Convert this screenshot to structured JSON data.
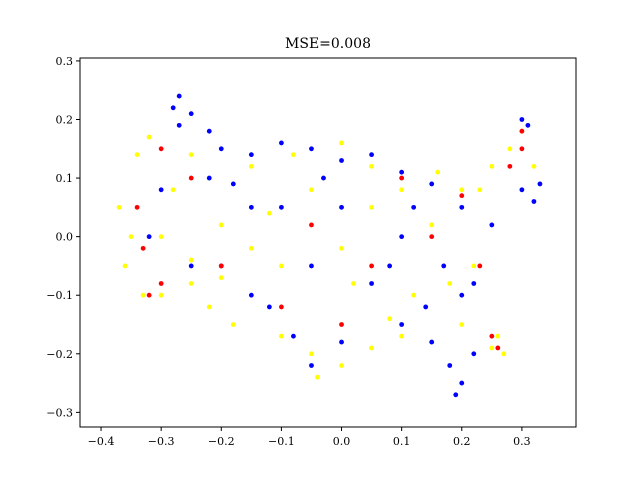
{
  "chart_data": {
    "type": "scatter",
    "title": "MSE=0.008",
    "xlabel": "",
    "ylabel": "",
    "xlim": [
      -0.435,
      0.39
    ],
    "ylim": [
      -0.325,
      0.305
    ],
    "grid": false,
    "legend": "none",
    "x_ticks": [
      -0.4,
      -0.3,
      -0.2,
      -0.1,
      0.0,
      0.1,
      0.2,
      0.3
    ],
    "x_tick_labels": [
      "−0.4",
      "−0.3",
      "−0.2",
      "−0.1",
      "0.0",
      "0.1",
      "0.2",
      "0.3"
    ],
    "y_ticks": [
      -0.3,
      -0.2,
      -0.1,
      0.0,
      0.1,
      0.2,
      0.3
    ],
    "y_tick_labels": [
      "−0.3",
      "−0.2",
      "−0.1",
      "0.0",
      "0.1",
      "0.2",
      "0.3"
    ],
    "series": [
      {
        "color": "#ffff00",
        "points": [
          [
            -0.37,
            0.05
          ],
          [
            -0.35,
            0.0
          ],
          [
            -0.36,
            -0.05
          ],
          [
            -0.33,
            -0.1
          ],
          [
            -0.3,
            -0.1
          ],
          [
            -0.25,
            -0.08
          ],
          [
            -0.22,
            -0.12
          ],
          [
            -0.18,
            -0.15
          ],
          [
            -0.1,
            -0.17
          ],
          [
            -0.05,
            -0.2
          ],
          [
            0.0,
            -0.22
          ],
          [
            -0.04,
            -0.24
          ],
          [
            0.05,
            -0.19
          ],
          [
            0.1,
            -0.17
          ],
          [
            0.2,
            -0.15
          ],
          [
            0.25,
            -0.19
          ],
          [
            0.27,
            -0.2
          ],
          [
            0.26,
            -0.17
          ],
          [
            0.22,
            -0.05
          ],
          [
            0.23,
            0.08
          ],
          [
            0.25,
            0.12
          ],
          [
            0.28,
            0.15
          ],
          [
            0.3,
            0.18
          ],
          [
            0.32,
            0.12
          ],
          [
            0.2,
            0.08
          ],
          [
            0.15,
            0.02
          ],
          [
            0.1,
            0.08
          ],
          [
            0.05,
            0.12
          ],
          [
            0.0,
            0.16
          ],
          [
            -0.08,
            0.14
          ],
          [
            -0.15,
            0.12
          ],
          [
            -0.25,
            0.14
          ],
          [
            -0.32,
            0.17
          ],
          [
            -0.34,
            0.14
          ],
          [
            -0.3,
            0.0
          ],
          [
            -0.2,
            0.02
          ],
          [
            -0.1,
            -0.05
          ],
          [
            0.0,
            -0.02
          ],
          [
            0.05,
            0.05
          ],
          [
            -0.05,
            0.08
          ],
          [
            -0.15,
            -0.02
          ],
          [
            -0.25,
            -0.04
          ],
          [
            0.12,
            -0.1
          ],
          [
            0.18,
            -0.08
          ],
          [
            -0.12,
            0.04
          ],
          [
            0.08,
            -0.14
          ],
          [
            -0.28,
            0.08
          ],
          [
            0.02,
            -0.08
          ],
          [
            0.16,
            0.11
          ],
          [
            -0.2,
            -0.07
          ]
        ]
      },
      {
        "color": "#0000ff",
        "points": [
          [
            -0.28,
            0.22
          ],
          [
            -0.27,
            0.24
          ],
          [
            -0.25,
            0.21
          ],
          [
            -0.22,
            0.18
          ],
          [
            -0.2,
            0.15
          ],
          [
            -0.15,
            0.14
          ],
          [
            -0.1,
            0.16
          ],
          [
            -0.05,
            0.15
          ],
          [
            0.0,
            0.13
          ],
          [
            0.05,
            0.14
          ],
          [
            0.1,
            0.11
          ],
          [
            0.15,
            0.09
          ],
          [
            0.2,
            0.05
          ],
          [
            0.25,
            0.02
          ],
          [
            0.3,
            0.08
          ],
          [
            0.32,
            0.06
          ],
          [
            0.33,
            0.09
          ],
          [
            0.31,
            0.19
          ],
          [
            0.3,
            0.2
          ],
          [
            0.2,
            -0.1
          ],
          [
            0.15,
            -0.18
          ],
          [
            0.18,
            -0.22
          ],
          [
            0.2,
            -0.25
          ],
          [
            0.19,
            -0.27
          ],
          [
            0.22,
            -0.2
          ],
          [
            0.1,
            -0.15
          ],
          [
            0.0,
            -0.18
          ],
          [
            -0.05,
            -0.22
          ],
          [
            -0.08,
            -0.17
          ],
          [
            -0.15,
            -0.1
          ],
          [
            -0.25,
            -0.05
          ],
          [
            -0.3,
            0.08
          ],
          [
            -0.32,
            0.0
          ],
          [
            -0.2,
            -0.05
          ],
          [
            -0.1,
            0.05
          ],
          [
            0.0,
            0.05
          ],
          [
            0.1,
            0.0
          ],
          [
            -0.15,
            0.05
          ],
          [
            0.05,
            -0.08
          ],
          [
            -0.05,
            -0.05
          ],
          [
            0.12,
            0.05
          ],
          [
            -0.22,
            0.1
          ],
          [
            0.08,
            -0.05
          ],
          [
            -0.12,
            -0.12
          ],
          [
            0.17,
            -0.05
          ],
          [
            -0.03,
            0.1
          ],
          [
            0.22,
            -0.08
          ],
          [
            -0.27,
            0.19
          ],
          [
            -0.18,
            0.09
          ],
          [
            0.14,
            -0.12
          ]
        ]
      },
      {
        "color": "#ff0000",
        "points": [
          [
            -0.34,
            0.05
          ],
          [
            -0.33,
            -0.02
          ],
          [
            -0.32,
            -0.1
          ],
          [
            -0.3,
            -0.08
          ],
          [
            -0.2,
            -0.05
          ],
          [
            -0.1,
            -0.12
          ],
          [
            0.0,
            -0.15
          ],
          [
            0.15,
            0.0
          ],
          [
            0.23,
            -0.05
          ],
          [
            0.26,
            -0.19
          ],
          [
            0.25,
            -0.17
          ],
          [
            0.28,
            0.12
          ],
          [
            0.3,
            0.15
          ],
          [
            0.3,
            0.18
          ],
          [
            0.2,
            0.07
          ],
          [
            0.1,
            0.1
          ],
          [
            -0.25,
            0.1
          ],
          [
            -0.3,
            0.15
          ],
          [
            0.05,
            -0.05
          ],
          [
            -0.05,
            0.02
          ]
        ]
      }
    ]
  }
}
